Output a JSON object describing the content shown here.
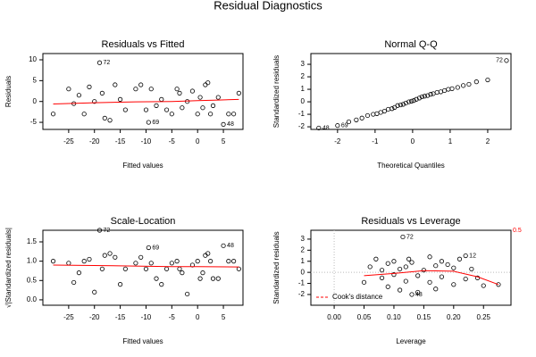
{
  "title": "Residual Diagnostics",
  "chart_data": [
    {
      "type": "scatter",
      "title": "Residuals vs Fitted",
      "xlabel": "Fitted values",
      "ylabel": "Residuals",
      "xlim": [
        -30,
        8.8
      ],
      "ylim": [
        -6.7,
        11.5
      ],
      "xticks": [
        -25,
        -20,
        -15,
        -10,
        -5,
        0,
        5
      ],
      "yticks": [
        -5,
        0,
        5,
        10
      ],
      "x": [
        -28,
        -25,
        -24,
        -23,
        -22,
        -21,
        -20,
        -19,
        -18.5,
        -18,
        -17,
        -16,
        -15,
        -14,
        -12,
        -11,
        -10,
        -9.5,
        -9,
        -8,
        -7,
        -6,
        -5,
        -4,
        -3.5,
        -3,
        -2,
        -1,
        0,
        0.5,
        1,
        1.5,
        2,
        2.5,
        3,
        4,
        5,
        6,
        7,
        8
      ],
      "y": [
        -3,
        3,
        -0.5,
        1.5,
        -3,
        3.5,
        0,
        9.3,
        2,
        -4,
        -4.5,
        4,
        0.5,
        -2,
        3,
        4,
        -2,
        -5,
        3,
        -1,
        0.5,
        -2,
        -3,
        3,
        2,
        -1.5,
        0,
        2.5,
        -3,
        1,
        -1.5,
        4,
        4.5,
        -3,
        -1,
        1,
        -5.5,
        -3,
        -3,
        2
      ],
      "point_labels": [
        {
          "label": "72",
          "x": -19,
          "y": 9.3
        },
        {
          "label": "69",
          "x": -9.5,
          "y": -5
        },
        {
          "label": "48",
          "x": 5,
          "y": -5.5
        }
      ],
      "smooth": {
        "color": "#ff0000",
        "x": [
          -28,
          -20,
          -12,
          -5,
          0,
          4,
          8
        ],
        "y": [
          -0.6,
          -0.3,
          -0.1,
          0,
          0.2,
          0.35,
          0.5
        ]
      }
    },
    {
      "type": "scatter",
      "title": "Normal Q-Q",
      "xlabel": "Theoretical Quantiles",
      "ylabel": "Standardized residuals",
      "xlim": [
        -2.71,
        2.62
      ],
      "ylim": [
        -2.21,
        3.86
      ],
      "xticks": [
        -2,
        -1,
        0,
        1,
        2
      ],
      "yticks": [
        -2,
        -1,
        0,
        1,
        2,
        3
      ],
      "x": [
        -2.5,
        -2.0,
        -1.7,
        -1.5,
        -1.35,
        -1.2,
        -1.05,
        -0.95,
        -0.85,
        -0.75,
        -0.65,
        -0.55,
        -0.48,
        -0.4,
        -0.32,
        -0.25,
        -0.18,
        -0.1,
        -0.03,
        0.03,
        0.1,
        0.18,
        0.25,
        0.32,
        0.4,
        0.48,
        0.55,
        0.65,
        0.75,
        0.85,
        0.95,
        1.05,
        1.2,
        1.35,
        1.5,
        1.7,
        2.0,
        2.5
      ],
      "y": [
        -2.1,
        -1.9,
        -1.6,
        -1.45,
        -1.3,
        -1.1,
        -1.0,
        -0.95,
        -0.85,
        -0.75,
        -0.6,
        -0.55,
        -0.45,
        -0.3,
        -0.25,
        -0.2,
        -0.1,
        0,
        0.05,
        0.1,
        0.2,
        0.3,
        0.4,
        0.45,
        0.5,
        0.6,
        0.65,
        0.75,
        0.8,
        0.9,
        1.0,
        1.05,
        1.15,
        1.3,
        1.4,
        1.6,
        1.75,
        3.3
      ],
      "point_labels": [
        {
          "label": "48",
          "x": -2.5,
          "y": -2.1
        },
        {
          "label": "69",
          "x": -2.0,
          "y": -1.9
        },
        {
          "label": "72",
          "x": 2.5,
          "y": 3.3
        }
      ]
    },
    {
      "type": "scatter",
      "title": "Scale-Location",
      "xlabel": "Fitted values",
      "ylabel": "√|Standardized residuals|",
      "xlim": [
        -30,
        8.8
      ],
      "ylim": [
        -0.14,
        1.8
      ],
      "xticks": [
        -25,
        -20,
        -15,
        -10,
        -5,
        0,
        5
      ],
      "yticks": [
        {
          "value": 0,
          "label": "0.0"
        },
        {
          "value": 0.5,
          "label": "0.5"
        },
        {
          "value": 1,
          "label": "1.0"
        },
        {
          "value": 1.5,
          "label": "1.5"
        }
      ],
      "x": [
        -28,
        -25,
        -24,
        -23,
        -22,
        -21,
        -20,
        -19,
        -18.5,
        -18,
        -17,
        -16,
        -15,
        -14,
        -12,
        -11,
        -10,
        -9.5,
        -9,
        -8,
        -7,
        -6,
        -5,
        -4,
        -3.5,
        -3,
        -2,
        -1,
        0,
        0.5,
        1,
        1.5,
        2,
        2.5,
        3,
        4,
        5,
        6,
        7,
        8
      ],
      "y": [
        1.0,
        0.95,
        0.45,
        0.7,
        1.0,
        1.05,
        0.2,
        1.8,
        0.8,
        1.15,
        1.2,
        1.1,
        0.4,
        0.8,
        0.95,
        1.1,
        0.8,
        1.35,
        0.95,
        0.55,
        0.4,
        0.8,
        0.95,
        1.0,
        0.8,
        0.7,
        0.15,
        0.9,
        1.0,
        0.55,
        0.7,
        1.15,
        1.2,
        1.0,
        0.55,
        0.55,
        1.4,
        1.0,
        1.0,
        0.8
      ],
      "point_labels": [
        {
          "label": "72",
          "x": -19,
          "y": 1.8
        },
        {
          "label": "69",
          "x": -9.5,
          "y": 1.35
        },
        {
          "label": "48",
          "x": 5,
          "y": 1.4
        }
      ],
      "smooth": {
        "color": "#ff0000",
        "x": [
          -28,
          -15,
          -5,
          0,
          8
        ],
        "y": [
          0.9,
          0.88,
          0.86,
          0.86,
          0.85
        ]
      }
    },
    {
      "type": "scatter",
      "title": "Residuals vs Leverage",
      "xlabel": "Leverage",
      "ylabel": "Standardized residuals",
      "xlim": [
        -0.039,
        0.296
      ],
      "ylim": [
        -2.97,
        3.8
      ],
      "xticks": [
        {
          "value": 0,
          "label": "0.00"
        },
        {
          "value": 0.05,
          "label": "0.05"
        },
        {
          "value": 0.1,
          "label": "0.10"
        },
        {
          "value": 0.15,
          "label": "0.15"
        },
        {
          "value": 0.2,
          "label": "0.20"
        },
        {
          "value": 0.25,
          "label": "0.25"
        }
      ],
      "yticks": [
        -2,
        -1,
        0,
        1,
        2,
        3
      ],
      "x": [
        0.05,
        0.06,
        0.07,
        0.08,
        0.08,
        0.09,
        0.09,
        0.1,
        0.1,
        0.11,
        0.11,
        0.115,
        0.12,
        0.12,
        0.125,
        0.13,
        0.13,
        0.14,
        0.14,
        0.15,
        0.16,
        0.16,
        0.17,
        0.17,
        0.18,
        0.18,
        0.19,
        0.2,
        0.2,
        0.21,
        0.22,
        0.22,
        0.23,
        0.24,
        0.25,
        0.275
      ],
      "y": [
        -0.9,
        0.5,
        1.2,
        -0.5,
        0.2,
        -1.3,
        0.8,
        -0.2,
        1.0,
        0.3,
        -1.6,
        3.2,
        0.5,
        -0.8,
        1.2,
        -2.0,
        0.9,
        -0.3,
        -1.8,
        0.2,
        1.4,
        -0.9,
        0.6,
        -1.5,
        1.0,
        -0.4,
        0.7,
        -1.1,
        0.4,
        1.2,
        -0.6,
        1.5,
        0.3,
        -0.5,
        -1.2,
        -1.1
      ],
      "point_labels": [
        {
          "label": "72",
          "x": 0.115,
          "y": 3.2
        },
        {
          "label": "12",
          "x": 0.22,
          "y": 1.5
        },
        {
          "label": "48",
          "x": 0.13,
          "y": -2.0
        }
      ],
      "smooth": {
        "color": "#ff0000",
        "x": [
          0.05,
          0.1,
          0.15,
          0.2,
          0.24,
          0.275
        ],
        "y": [
          -0.3,
          -0.1,
          0.15,
          0.1,
          -0.4,
          -1.1
        ]
      },
      "legend": {
        "label": "Cook's distance",
        "color": "#ff0000",
        "corner": "bottom-left"
      },
      "cooks_label": "0.5"
    }
  ]
}
